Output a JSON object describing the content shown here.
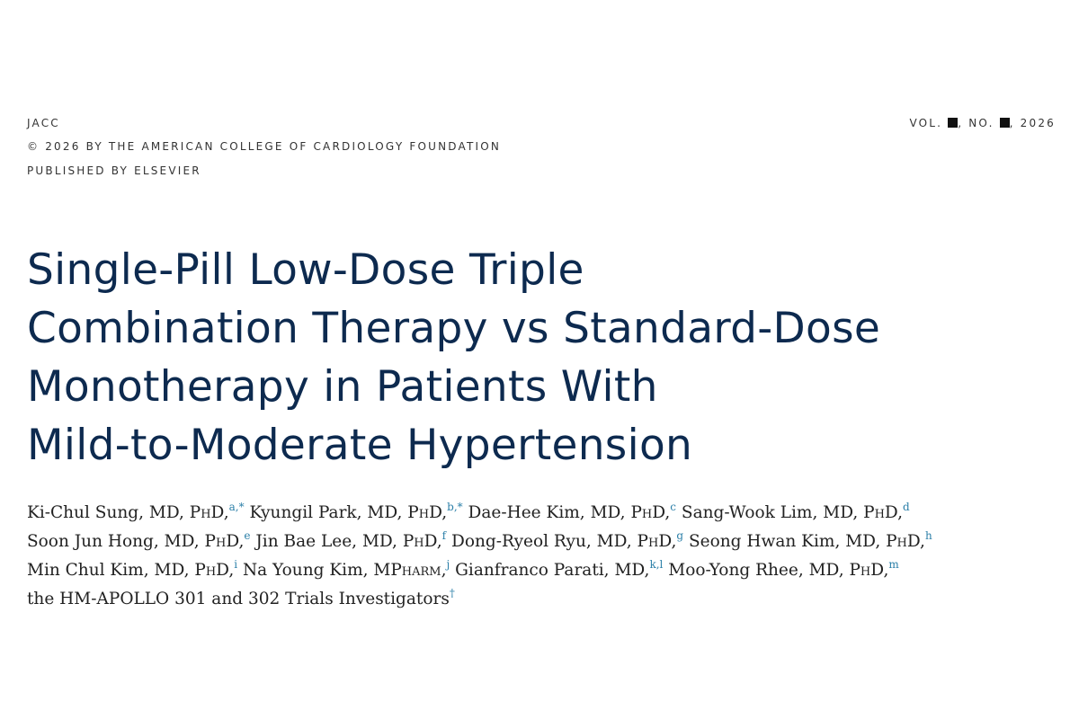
{
  "header": {
    "journal": "JACC",
    "copyright": "© 2026 BY THE AMERICAN COLLEGE OF CARDIOLOGY FOUNDATION",
    "publisher": "PUBLISHED BY ELSEVIER",
    "vol_label": "VOL.",
    "no_label": ", NO.",
    "year": ", 2026"
  },
  "title_lines": [
    "Single-Pill Low-Dose Triple",
    "Combination Therapy vs Standard-Dose",
    "Monotherapy in Patients With",
    "Mild-to-Moderate Hypertension"
  ],
  "author_lines": [
    [
      {
        "name": "Ki-Chul Sung,",
        "degrees": "MD, PhD,",
        "sup": "a,*"
      },
      {
        "name": "Kyungil Park,",
        "degrees": "MD, PhD,",
        "sup": "b,*"
      },
      {
        "name": "Dae-Hee Kim,",
        "degrees": "MD, PhD,",
        "sup": "c"
      },
      {
        "name": "Sang-Wook Lim,",
        "degrees": "MD, PhD,",
        "sup": "d"
      }
    ],
    [
      {
        "name": "Soon Jun Hong,",
        "degrees": "MD, PhD,",
        "sup": "e"
      },
      {
        "name": "Jin Bae Lee,",
        "degrees": "MD, PhD,",
        "sup": "f"
      },
      {
        "name": "Dong-Ryeol Ryu,",
        "degrees": "MD, PhD,",
        "sup": "g"
      },
      {
        "name": "Seong Hwan Kim,",
        "degrees": "MD, PhD,",
        "sup": "h"
      }
    ],
    [
      {
        "name": "Min Chul Kim,",
        "degrees": "MD, PhD,",
        "sup": "i"
      },
      {
        "name": "Na Young Kim,",
        "degrees": "MPharm,",
        "sup": "j"
      },
      {
        "name": "Gianfranco Parati,",
        "degrees": "MD,",
        "sup": "k,l"
      },
      {
        "name": "Moo-Yong Rhee,",
        "degrees": "MD, PhD,",
        "sup": "m"
      }
    ]
  ],
  "group_author": {
    "text": "the HM-APOLLO 301 and 302 Trials Investigators",
    "sup": "†"
  },
  "colors": {
    "title": "#0d2a4f",
    "superscript": "#2b7fa8"
  }
}
